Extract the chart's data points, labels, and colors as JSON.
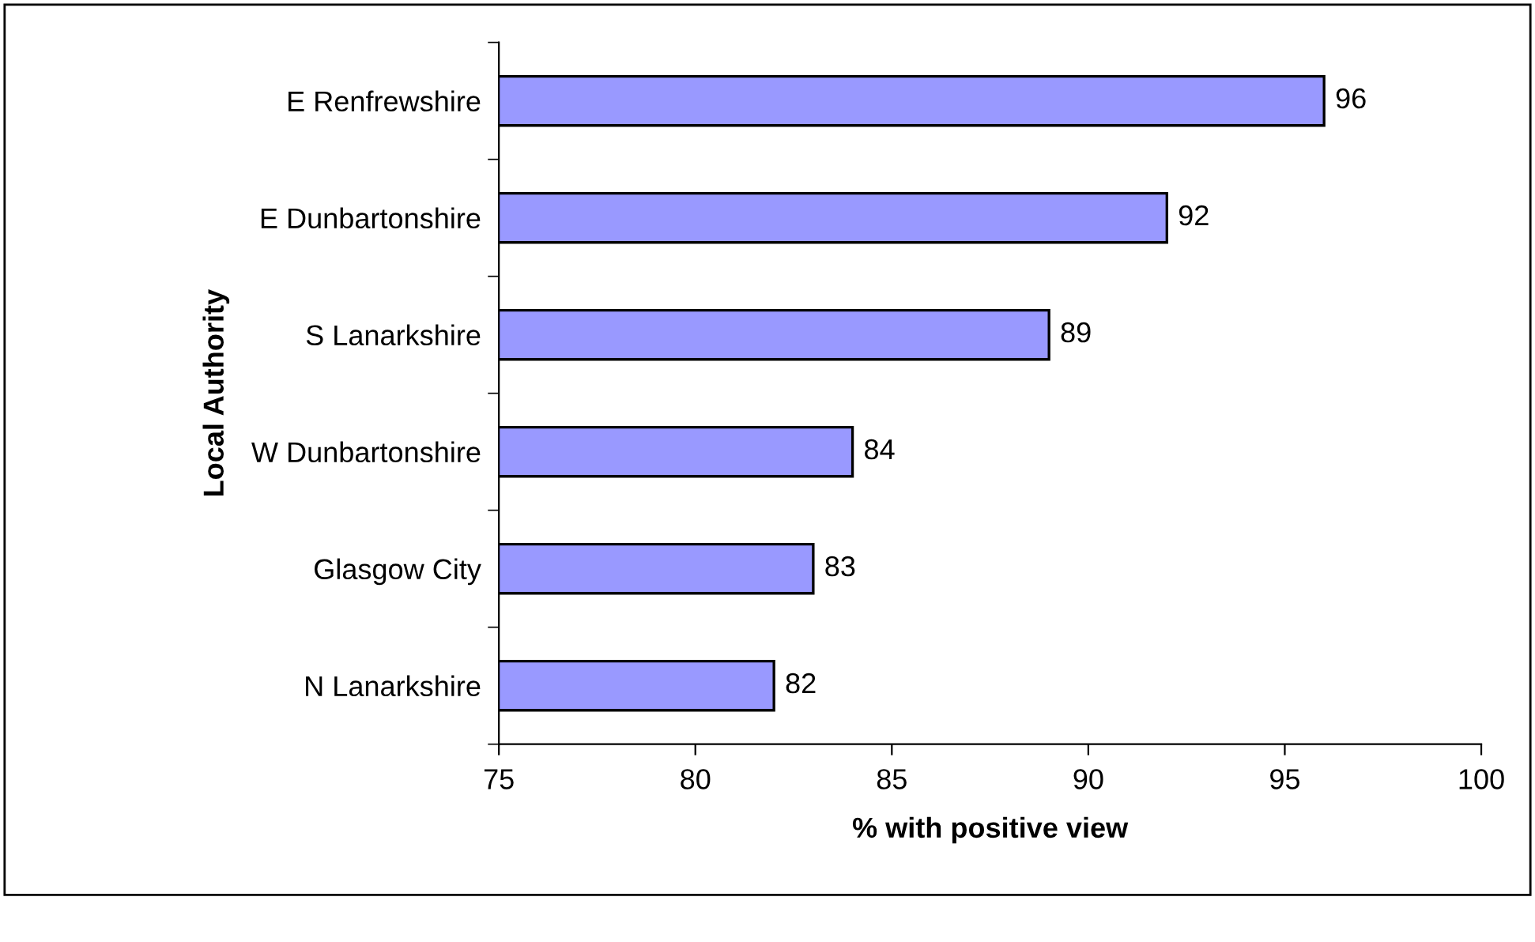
{
  "chart_data": {
    "type": "bar",
    "orientation": "horizontal",
    "xlabel": "% with positive view",
    "ylabel": "Local Authority",
    "categories": [
      "E Renfrewshire",
      "E Dunbartonshire",
      "S Lanarkshire",
      "W Dunbartonshire",
      "Glasgow City",
      "N Lanarkshire"
    ],
    "values": [
      96,
      92,
      89,
      84,
      83,
      82
    ],
    "color": "#9999ff",
    "data_labels": true,
    "xlim": [
      75,
      100
    ],
    "xticks": [
      75,
      80,
      85,
      90,
      95,
      100
    ],
    "grid": false,
    "legend": false
  }
}
